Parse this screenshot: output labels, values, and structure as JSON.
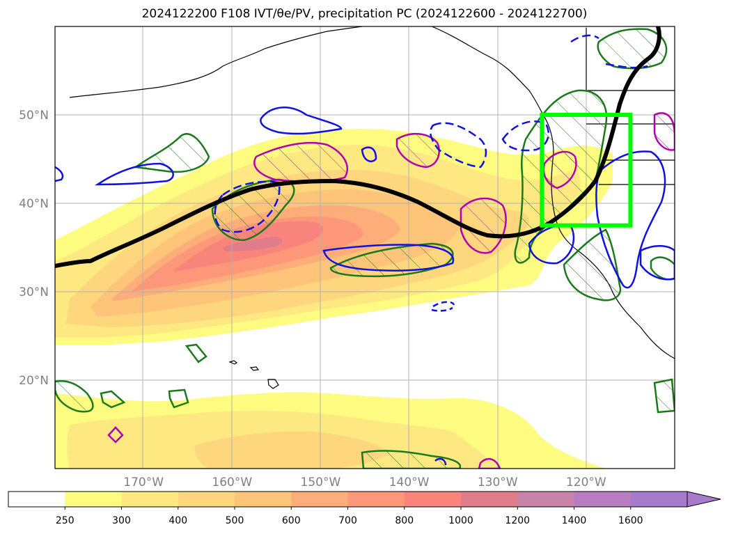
{
  "title": "2024122200 F108 IVT/θe/PV, precipitation PC (2024122600 - 2024122700)",
  "map": {
    "projection": "plate-carree",
    "lon_range": [
      -180,
      -110
    ],
    "lat_range": [
      10,
      60
    ],
    "gridlines": true,
    "lon_ticks": [
      {
        "lon": -170,
        "label": "170°W"
      },
      {
        "lon": -160,
        "label": "160°W"
      },
      {
        "lon": -150,
        "label": "150°W"
      },
      {
        "lon": -140,
        "label": "140°W"
      },
      {
        "lon": -130,
        "label": "130°W"
      },
      {
        "lon": -120,
        "label": "120°W"
      }
    ],
    "lat_ticks": [
      {
        "lat": 50,
        "label": "50°N"
      },
      {
        "lat": 40,
        "label": "40°N"
      },
      {
        "lat": 30,
        "label": "30°N"
      },
      {
        "lat": 20,
        "label": "20°N"
      }
    ],
    "highlight_box": {
      "lon": [
        -125,
        -115
      ],
      "lat": [
        37.5,
        50
      ],
      "color": "#00ff00"
    },
    "layers": {
      "ivt_fill": "IVT shaded (kg m-1 s-1)",
      "theta_e_line": "black thick contour",
      "pv_contours": "blue solid/dashed",
      "precip_pc": "green hatched contours",
      "magenta_contours": "magenta hatched"
    }
  },
  "colorbar": {
    "levels": [
      "250",
      "300",
      "400",
      "500",
      "600",
      "700",
      "800",
      "1000",
      "1200",
      "1400",
      "1600"
    ],
    "colors": [
      "#ffffff",
      "#fdfb80",
      "#fde881",
      "#fdd67e",
      "#fdc47a",
      "#fdad7a",
      "#fd9779",
      "#f9847b",
      "#e07d8b",
      "#c884a6",
      "#b87dc0",
      "#a77bcc"
    ],
    "extend": "max"
  }
}
